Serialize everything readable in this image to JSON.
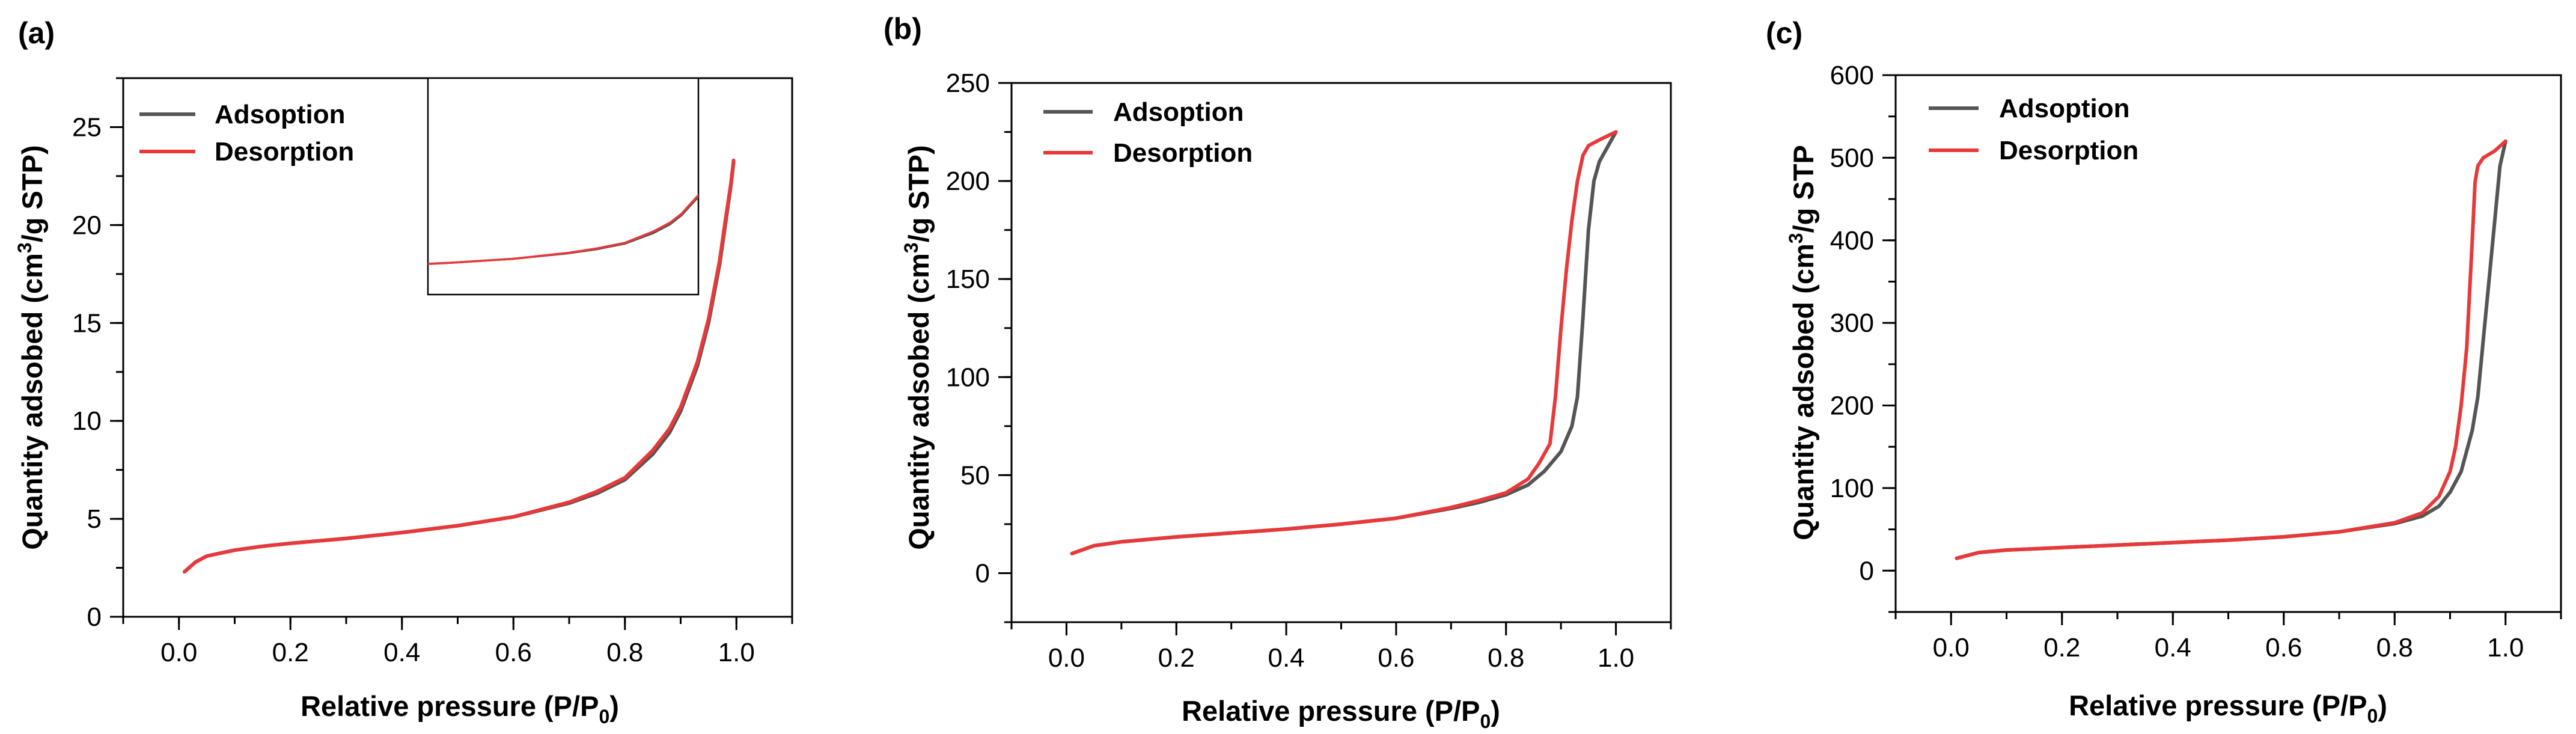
{
  "chart_data": [
    {
      "id": "a",
      "type": "line",
      "panel_label": "(a)",
      "xlabel": "Relative pressure (P/P",
      "xlabel_sub": "0",
      "xlabel_close": ")",
      "ylabel": "Quantity adsobed (cm",
      "ylabel_sup": "3",
      "ylabel_tail": "/g STP)",
      "xlim": [
        -0.1,
        1.1
      ],
      "ylim": [
        0,
        27.5
      ],
      "xticks": [
        0.0,
        0.2,
        0.4,
        0.6,
        0.8,
        1.0
      ],
      "xtick_labels": [
        "0.0",
        "0.2",
        "0.4",
        "0.6",
        "0.8",
        "1.0"
      ],
      "yticks": [
        0,
        5,
        10,
        15,
        20,
        25
      ],
      "ytick_labels": [
        "0",
        "5",
        "10",
        "15",
        "20",
        "25"
      ],
      "legend_position": "top-left",
      "inset": {
        "description": "zoomed isotherm",
        "xlim": [
          0.45,
          0.93
        ],
        "ylim": [
          4.4,
          27.5
        ]
      },
      "series": [
        {
          "name": "Adsoption",
          "color": "#555555",
          "x": [
            0.01,
            0.03,
            0.05,
            0.1,
            0.15,
            0.2,
            0.3,
            0.4,
            0.5,
            0.6,
            0.7,
            0.75,
            0.8,
            0.85,
            0.88,
            0.9,
            0.93,
            0.95,
            0.97,
            0.98,
            0.99,
            0.995
          ],
          "y": [
            2.3,
            2.8,
            3.1,
            3.4,
            3.6,
            3.75,
            4.0,
            4.3,
            4.65,
            5.1,
            5.8,
            6.3,
            7.0,
            8.3,
            9.4,
            10.5,
            12.8,
            15.0,
            18.0,
            20.0,
            22.0,
            23.2
          ]
        },
        {
          "name": "Desorption",
          "color": "#e8393a",
          "x": [
            0.01,
            0.03,
            0.05,
            0.1,
            0.15,
            0.2,
            0.3,
            0.4,
            0.5,
            0.6,
            0.7,
            0.75,
            0.8,
            0.85,
            0.88,
            0.9,
            0.93,
            0.95,
            0.97,
            0.98,
            0.99,
            0.995
          ],
          "y": [
            2.3,
            2.8,
            3.1,
            3.4,
            3.6,
            3.75,
            4.0,
            4.3,
            4.65,
            5.1,
            5.85,
            6.4,
            7.1,
            8.5,
            9.6,
            10.7,
            13.0,
            15.2,
            18.2,
            20.2,
            22.1,
            23.3
          ]
        }
      ]
    },
    {
      "id": "b",
      "type": "line",
      "panel_label": "(b)",
      "xlabel": "Relative pressure (P/P",
      "xlabel_sub": "0",
      "xlabel_close": ")",
      "ylabel": "Quantity adsobed (cm",
      "ylabel_sup": "3",
      "ylabel_tail": "/g STP)",
      "xlim": [
        -0.1,
        1.1
      ],
      "ylim": [
        -25,
        250
      ],
      "xticks": [
        0.0,
        0.2,
        0.4,
        0.6,
        0.8,
        1.0
      ],
      "xtick_labels": [
        "0.0",
        "0.2",
        "0.4",
        "0.6",
        "0.8",
        "1.0"
      ],
      "yticks": [
        0,
        50,
        100,
        150,
        200,
        250
      ],
      "ytick_labels": [
        "0",
        "50",
        "100",
        "150",
        "200",
        "250"
      ],
      "legend_position": "top-left",
      "series": [
        {
          "name": "Adsoption",
          "color": "#555555",
          "x": [
            0.01,
            0.05,
            0.1,
            0.2,
            0.3,
            0.4,
            0.5,
            0.6,
            0.7,
            0.75,
            0.8,
            0.84,
            0.87,
            0.9,
            0.92,
            0.93,
            0.94,
            0.95,
            0.96,
            0.97,
            1.0
          ],
          "y": [
            10,
            14,
            16,
            18.5,
            20.5,
            22.5,
            25,
            28,
            33,
            36,
            40,
            45,
            52,
            62,
            75,
            90,
            130,
            175,
            200,
            210,
            225
          ]
        },
        {
          "name": "Desorption",
          "color": "#e8393a",
          "x": [
            0.01,
            0.05,
            0.1,
            0.2,
            0.3,
            0.4,
            0.5,
            0.6,
            0.7,
            0.75,
            0.8,
            0.84,
            0.86,
            0.88,
            0.89,
            0.9,
            0.91,
            0.92,
            0.93,
            0.94,
            0.95,
            0.97,
            1.0
          ],
          "y": [
            10,
            14,
            16,
            18.5,
            20.5,
            22.5,
            25,
            28,
            33.5,
            37,
            41,
            48,
            56,
            66,
            90,
            125,
            155,
            180,
            200,
            213,
            218,
            221,
            225
          ]
        }
      ]
    },
    {
      "id": "c",
      "type": "line",
      "panel_label": "(c)",
      "xlabel": "Relative pressure (P/P",
      "xlabel_sub": "0",
      "xlabel_close": ")",
      "ylabel": "Quantity adsobed (cm",
      "ylabel_sup": "3",
      "ylabel_tail": "/g STP",
      "xlim": [
        -0.1,
        1.1
      ],
      "ylim": [
        -50,
        600
      ],
      "xticks": [
        0.0,
        0.2,
        0.4,
        0.6,
        0.8,
        1.0
      ],
      "xtick_labels": [
        "0.0",
        "0.2",
        "0.4",
        "0.6",
        "0.8",
        "1.0"
      ],
      "yticks": [
        0,
        100,
        200,
        300,
        400,
        500,
        600
      ],
      "ytick_labels": [
        "0",
        "100",
        "200",
        "300",
        "400",
        "500",
        "600"
      ],
      "legend_position": "top-left",
      "series": [
        {
          "name": "Adsoption",
          "color": "#555555",
          "x": [
            0.01,
            0.05,
            0.1,
            0.2,
            0.3,
            0.4,
            0.5,
            0.6,
            0.7,
            0.8,
            0.85,
            0.88,
            0.9,
            0.92,
            0.94,
            0.95,
            0.96,
            0.97,
            0.98,
            0.99,
            1.0
          ],
          "y": [
            15,
            22,
            25,
            28,
            31,
            34,
            37,
            41,
            47,
            57,
            66,
            78,
            95,
            120,
            170,
            210,
            280,
            350,
            420,
            490,
            520
          ]
        },
        {
          "name": "Desorption",
          "color": "#e8393a",
          "x": [
            0.01,
            0.05,
            0.1,
            0.2,
            0.3,
            0.4,
            0.5,
            0.6,
            0.7,
            0.8,
            0.85,
            0.88,
            0.9,
            0.91,
            0.92,
            0.93,
            0.94,
            0.945,
            0.95,
            0.96,
            0.98,
            1.0
          ],
          "y": [
            15,
            22,
            25,
            28,
            31,
            34,
            37,
            41,
            47,
            58,
            70,
            90,
            120,
            150,
            200,
            270,
            400,
            470,
            490,
            500,
            508,
            520
          ]
        }
      ]
    }
  ]
}
